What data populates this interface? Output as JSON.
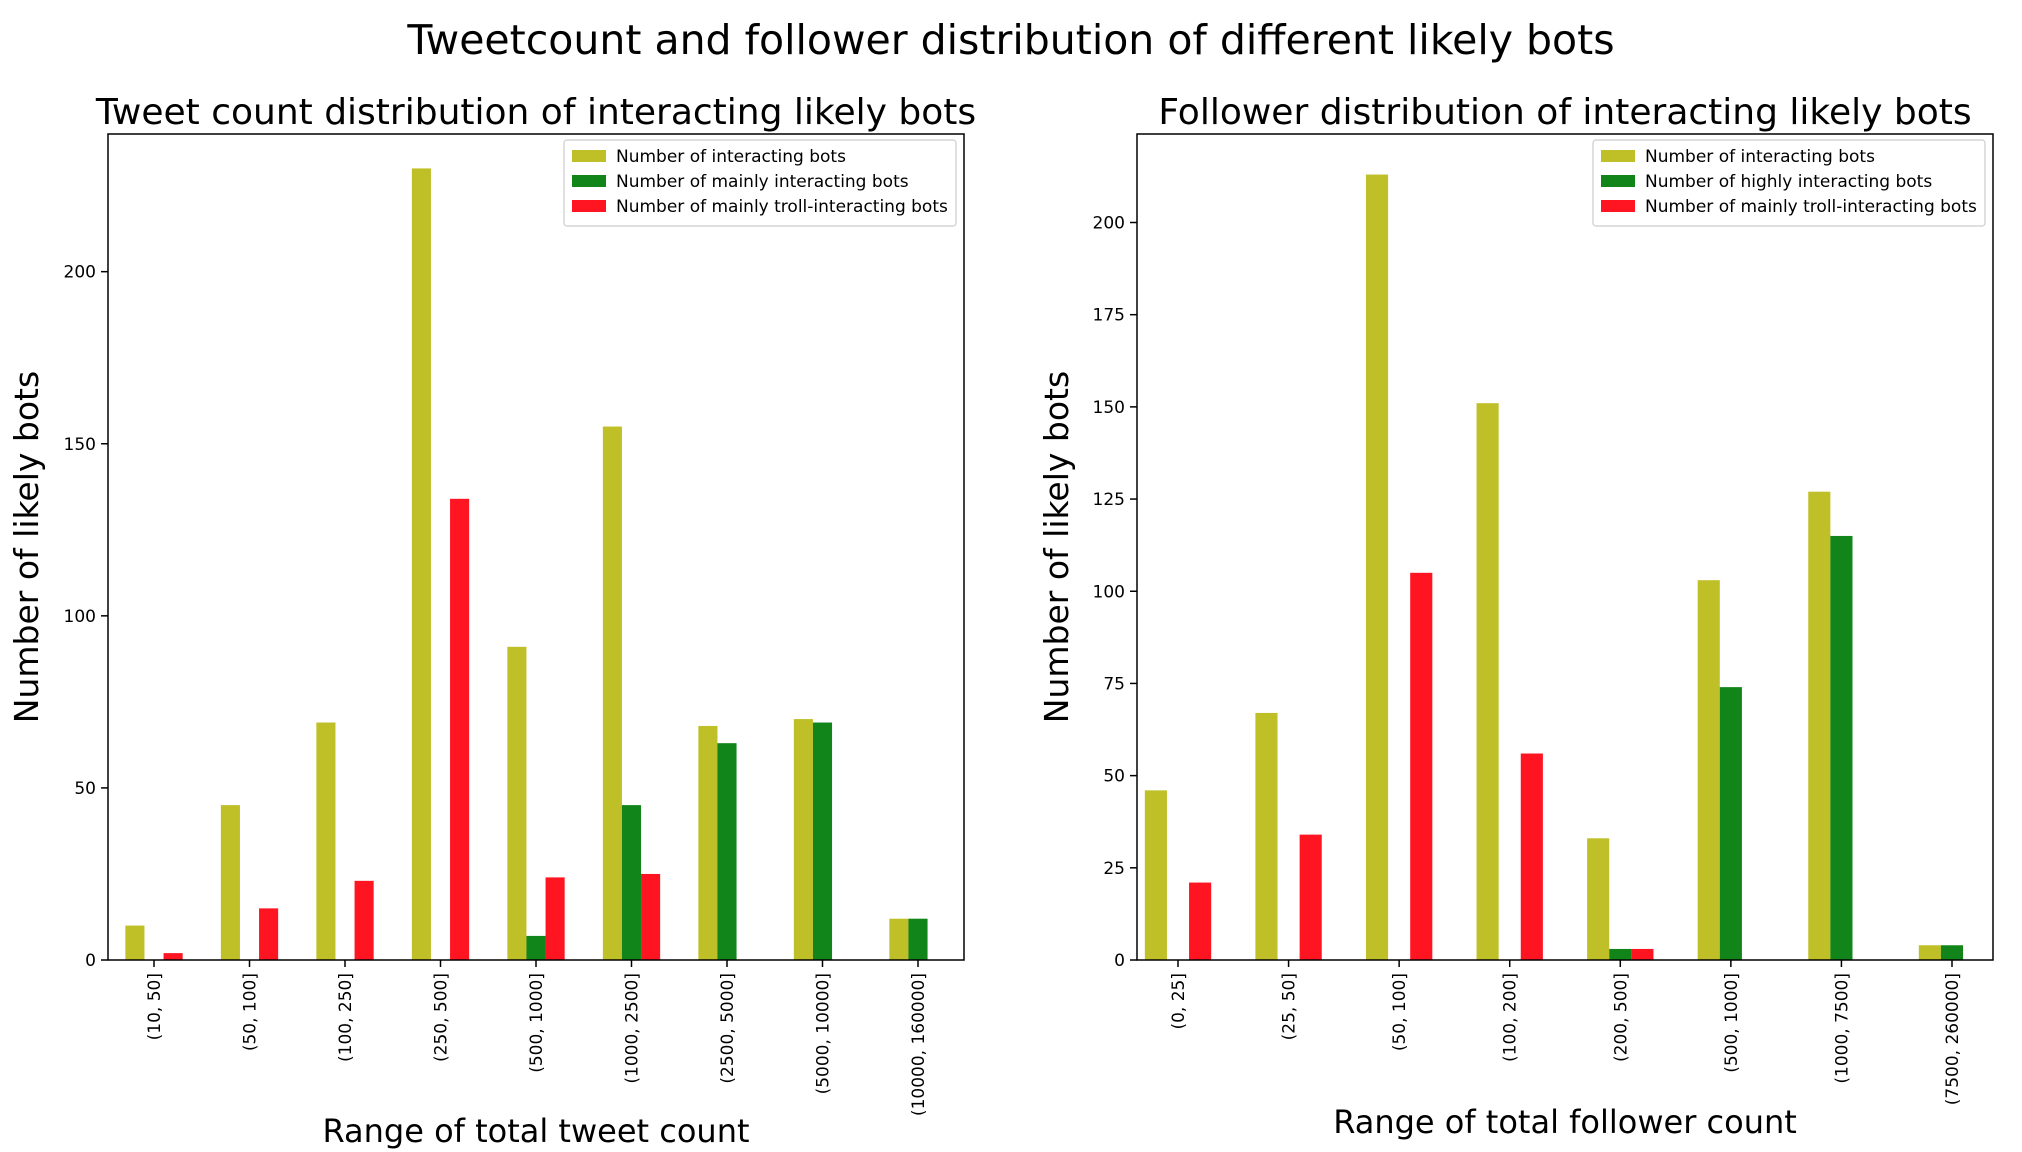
{
  "suptitle": "Tweetcount and follower distribution of different likely bots",
  "colors": {
    "interacting": "#bfbf27",
    "mainly": "#11841a",
    "troll": "#ff1421"
  },
  "chart_data": [
    {
      "type": "bar",
      "title": "Tweet count distribution of interacting likely bots",
      "xlabel": "Range of total tweet count",
      "ylabel": "Number of likely bots",
      "ylim": [
        0,
        240
      ],
      "yticks": [
        0,
        50,
        100,
        150,
        200
      ],
      "categories": [
        "(10, 50]",
        "(50, 100]",
        "(100, 250]",
        "(250, 500]",
        "(500, 1000]",
        "(1000, 2500]",
        "(2500, 5000]",
        "(5000, 10000]",
        "(10000, 160000]"
      ],
      "legend_position": "upper-right",
      "series": [
        {
          "name": "Number of interacting bots",
          "color": "#bfbf27",
          "values": [
            10,
            45,
            69,
            230,
            91,
            155,
            68,
            70,
            12
          ]
        },
        {
          "name": "Number of mainly interacting bots",
          "color": "#11841a",
          "values": [
            0,
            0,
            0,
            0,
            7,
            45,
            63,
            69,
            12
          ]
        },
        {
          "name": "Number of mainly troll-interacting bots",
          "color": "#ff1421",
          "values": [
            2,
            15,
            23,
            134,
            24,
            25,
            0,
            0,
            0
          ]
        }
      ]
    },
    {
      "type": "bar",
      "title": "Follower distribution of interacting likely bots",
      "xlabel": "Range of total follower count",
      "ylabel": "Number of likely bots",
      "ylim": [
        0,
        224
      ],
      "yticks": [
        0,
        25,
        50,
        75,
        100,
        125,
        150,
        175,
        200
      ],
      "categories": [
        "(0, 25]",
        "(25, 50]",
        "(50, 100]",
        "(100, 200]",
        "(200, 500]",
        "(500, 1000]",
        "(1000, 7500]",
        "(7500, 260000]"
      ],
      "legend_position": "upper-right",
      "series": [
        {
          "name": "Number of interacting bots",
          "color": "#bfbf27",
          "values": [
            46,
            67,
            213,
            151,
            33,
            103,
            127,
            4
          ]
        },
        {
          "name": "Number of highly interacting bots",
          "color": "#11841a",
          "values": [
            0,
            0,
            0,
            0,
            3,
            74,
            115,
            4
          ]
        },
        {
          "name": "Number of mainly troll-interacting bots",
          "color": "#ff1421",
          "values": [
            21,
            34,
            105,
            56,
            3,
            0,
            0,
            0
          ]
        }
      ]
    }
  ]
}
